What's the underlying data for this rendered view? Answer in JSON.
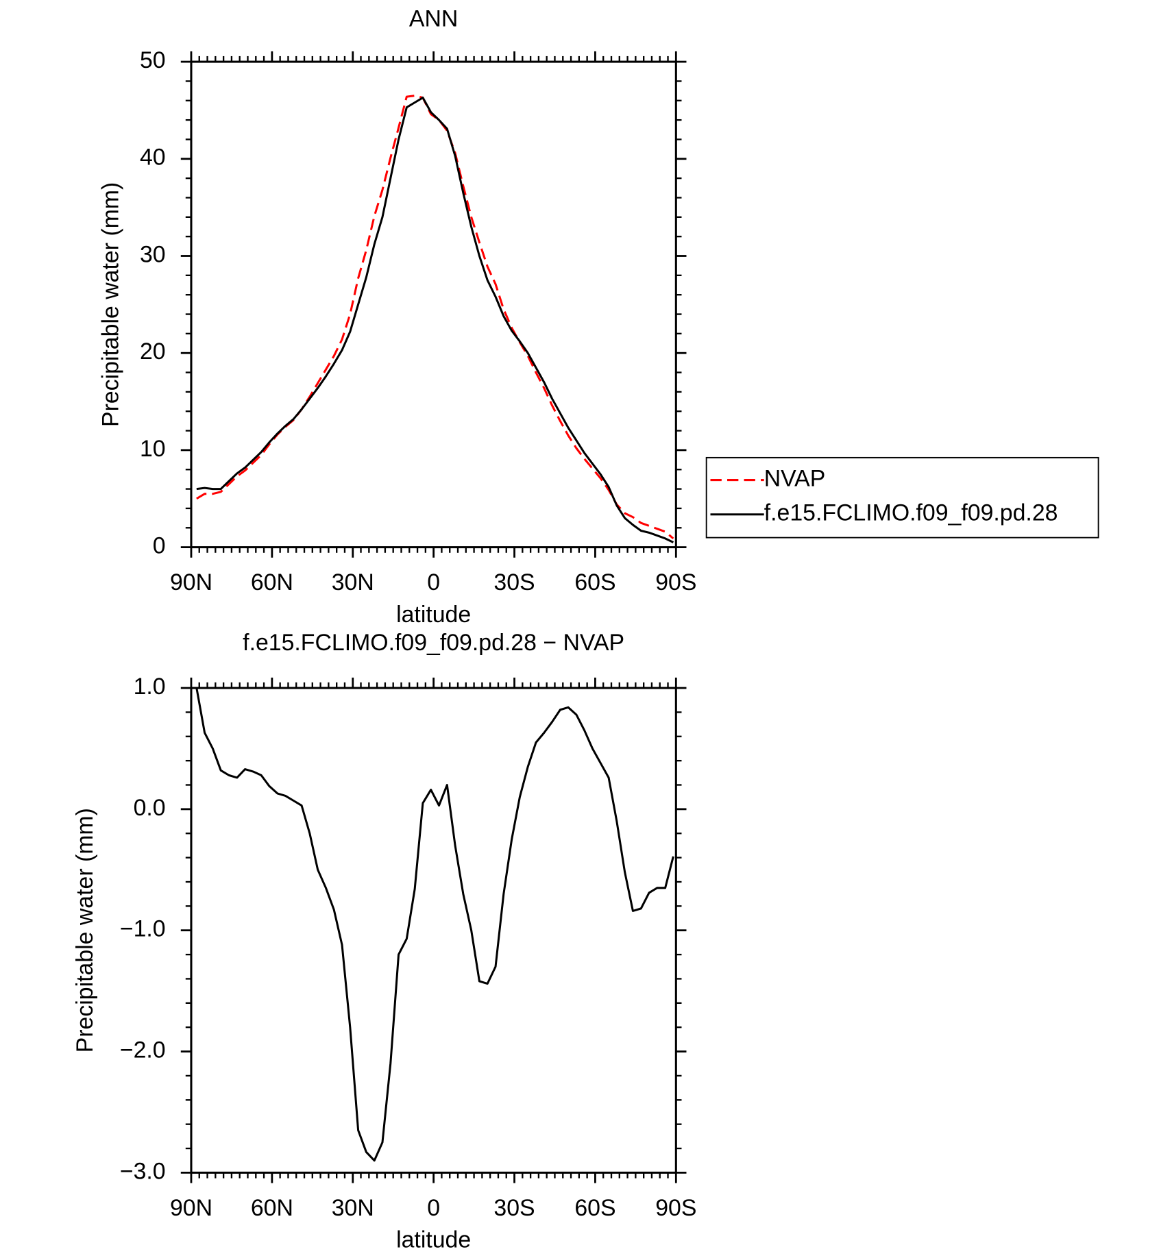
{
  "chart_data": [
    {
      "type": "line",
      "title": "ANN",
      "xlabel": "latitude",
      "ylabel": "Precipitable water (mm)",
      "xlim": [
        90,
        -90
      ],
      "xticks": [
        {
          "value": 90,
          "label": "90N"
        },
        {
          "value": 60,
          "label": "60N"
        },
        {
          "value": 30,
          "label": "30N"
        },
        0,
        {
          "value": -30,
          "label": "30S"
        },
        {
          "value": -60,
          "label": "60S"
        },
        {
          "value": -90,
          "label": "90S"
        }
      ],
      "ylim": [
        0,
        50
      ],
      "yticks": [
        0,
        10,
        20,
        30,
        40,
        50
      ],
      "legend": "right",
      "x": [
        88,
        85,
        82,
        79,
        76,
        73,
        70,
        67,
        64,
        61,
        58,
        55,
        52,
        49,
        46,
        43,
        40,
        37,
        34,
        31,
        28,
        25,
        22,
        19,
        16,
        13,
        10,
        7,
        4,
        1,
        -2,
        -5,
        -8,
        -11,
        -14,
        -17,
        -20,
        -23,
        -26,
        -29,
        -32,
        -35,
        -38,
        -41,
        -44,
        -47,
        -50,
        -53,
        -56,
        -59,
        -62,
        -65,
        -68,
        -71,
        -74,
        -77,
        -80,
        -83,
        -86,
        -89
      ],
      "series": [
        {
          "name": "NVAP",
          "color": "#ff0000",
          "line_style": "dashed",
          "values": [
            5.0,
            5.5,
            5.5,
            5.7,
            6.5,
            7.3,
            7.9,
            8.7,
            9.5,
            10.6,
            11.6,
            12.4,
            13.1,
            14.2,
            15.5,
            16.9,
            18.3,
            19.7,
            21.4,
            24.0,
            27.7,
            30.6,
            34.1,
            36.8,
            40.1,
            43.2,
            46.4,
            46.5,
            46.3,
            44.6,
            44.0,
            42.9,
            40.6,
            37.2,
            34.0,
            31.4,
            28.9,
            27.1,
            24.5,
            22.6,
            21.1,
            19.7,
            18.0,
            16.4,
            14.6,
            13.0,
            11.5,
            10.2,
            9.1,
            8.1,
            7.1,
            5.9,
            4.4,
            3.5,
            3.1,
            2.5,
            2.2,
            1.9,
            1.6,
            0.9
          ]
        },
        {
          "name": "f.e15.FCLIMO.f09_f09.pd.28",
          "color": "#000000",
          "line_style": "solid",
          "values": [
            6.0,
            6.1,
            6.0,
            6.0,
            6.8,
            7.6,
            8.2,
            9.0,
            9.8,
            10.8,
            11.7,
            12.5,
            13.2,
            14.2,
            15.3,
            16.4,
            17.6,
            18.9,
            20.3,
            22.2,
            25.0,
            27.8,
            31.2,
            34.0,
            38.0,
            42.0,
            45.3,
            45.8,
            46.3,
            44.8,
            44.0,
            43.1,
            40.3,
            36.5,
            33.0,
            30.0,
            27.5,
            25.8,
            23.8,
            22.3,
            21.2,
            20.0,
            18.5,
            17.0,
            15.3,
            13.8,
            12.3,
            11.0,
            9.7,
            8.6,
            7.5,
            6.2,
            4.3,
            3.0,
            2.3,
            1.7,
            1.5,
            1.2,
            0.9,
            0.5
          ]
        }
      ]
    },
    {
      "type": "line",
      "title": "f.e15.FCLIMO.f09_f09.pd.28 − NVAP",
      "xlabel": "latitude",
      "ylabel": "Precipitable water (mm)",
      "xlim": [
        90,
        -90
      ],
      "xticks": [
        {
          "value": 90,
          "label": "90N"
        },
        {
          "value": 60,
          "label": "60N"
        },
        {
          "value": 30,
          "label": "30N"
        },
        0,
        {
          "value": -30,
          "label": "30S"
        },
        {
          "value": -60,
          "label": "60S"
        },
        {
          "value": -90,
          "label": "90S"
        }
      ],
      "ylim": [
        -3,
        1
      ],
      "yticks": [
        {
          "value": -3,
          "label": "−3.0"
        },
        {
          "value": -2,
          "label": "−2.0"
        },
        {
          "value": -1,
          "label": "−1.0"
        },
        {
          "value": 0,
          "label": "0.0"
        },
        {
          "value": 1,
          "label": "1.0"
        }
      ],
      "x": [
        88,
        85,
        82,
        79,
        76,
        73,
        70,
        67,
        64,
        61,
        58,
        55,
        52,
        49,
        46,
        43,
        40,
        37,
        34,
        31,
        28,
        25,
        22,
        19,
        16,
        13,
        10,
        7,
        4,
        1,
        -2,
        -5,
        -8,
        -11,
        -14,
        -17,
        -20,
        -23,
        -26,
        -29,
        -32,
        -35,
        -38,
        -41,
        -44,
        -47,
        -50,
        -53,
        -56,
        -59,
        -62,
        -65,
        -68,
        -71,
        -74,
        -77,
        -80,
        -83,
        -86,
        -89
      ],
      "series": [
        {
          "color": "#000000",
          "line_style": "solid",
          "values": [
            1.0,
            0.63,
            0.5,
            0.32,
            0.28,
            0.26,
            0.33,
            0.31,
            0.28,
            0.19,
            0.13,
            0.11,
            0.07,
            0.03,
            -0.2,
            -0.5,
            -0.65,
            -0.83,
            -1.12,
            -1.8,
            -2.65,
            -2.83,
            -2.9,
            -2.75,
            -2.1,
            -1.2,
            -1.07,
            -0.66,
            0.05,
            0.16,
            0.03,
            0.2,
            -0.3,
            -0.7,
            -1.0,
            -1.42,
            -1.44,
            -1.3,
            -0.7,
            -0.25,
            0.1,
            0.35,
            0.55,
            0.63,
            0.72,
            0.82,
            0.84,
            0.78,
            0.65,
            0.5,
            0.38,
            0.26,
            -0.1,
            -0.52,
            -0.84,
            -0.82,
            -0.69,
            -0.65,
            -0.65,
            -0.39
          ]
        }
      ]
    }
  ]
}
